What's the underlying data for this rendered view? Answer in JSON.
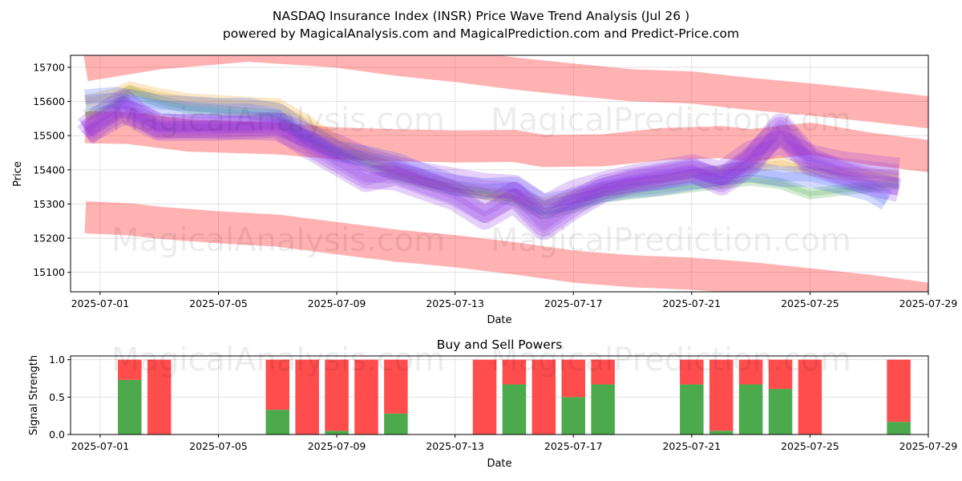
{
  "chart_data": [
    {
      "type": "area",
      "title": "NASDAQ Insurance Index (INSR) Price Wave Trend Analysis (Jul 26 )",
      "subtitle": "powered by MagicalAnalysis.com and MagicalPrediction.com and Predict-Price.com",
      "xlabel": "Date",
      "ylabel": "Price",
      "ylim": [
        15043,
        15735
      ],
      "xlim": [
        "2025-06-30",
        "2025-07-29"
      ],
      "x_ticks": [
        "2025-07-01",
        "2025-07-05",
        "2025-07-09",
        "2025-07-13",
        "2025-07-17",
        "2025-07-21",
        "2025-07-25",
        "2025-07-29"
      ],
      "y_ticks": [
        15100,
        15200,
        15300,
        15400,
        15500,
        15600,
        15700
      ],
      "grid": true,
      "watermarks": [
        "MagicalAnalysis.com",
        "MagicalPrediction.com"
      ],
      "bands": [
        {
          "name": "upper channel",
          "color": "#ff0000",
          "width": 40,
          "points": [
            [
              -0.5,
              15706
            ],
            [
              2,
              15741
            ],
            [
              5,
              15763
            ],
            [
              8,
              15746
            ],
            [
              10,
              15722
            ],
            [
              12,
              15704
            ],
            [
              14,
              15682
            ],
            [
              16,
              15664
            ],
            [
              18,
              15647
            ],
            [
              20,
              15641
            ],
            [
              22,
              15622
            ],
            [
              24,
              15606
            ],
            [
              26,
              15588
            ],
            [
              28.2,
              15566
            ]
          ]
        },
        {
          "name": "middle channel",
          "color": "#ff0000",
          "width": 40,
          "points": [
            [
              -0.5,
              15525
            ],
            [
              1,
              15522
            ],
            [
              3,
              15500
            ],
            [
              6,
              15492
            ],
            [
              8,
              15477
            ],
            [
              10,
              15472
            ],
            [
              12,
              15468
            ],
            [
              14,
              15470
            ],
            [
              15,
              15455
            ],
            [
              17,
              15457
            ],
            [
              19,
              15475
            ],
            [
              21,
              15481
            ],
            [
              22,
              15472
            ],
            [
              24,
              15491
            ],
            [
              26,
              15462
            ],
            [
              28.2,
              15438
            ]
          ]
        },
        {
          "name": "lower channel",
          "color": "#ff0000",
          "width": 40,
          "points": [
            [
              -0.5,
              15261
            ],
            [
              1,
              15255
            ],
            [
              2,
              15245
            ],
            [
              4,
              15232
            ],
            [
              6,
              15222
            ],
            [
              8,
              15200
            ],
            [
              10,
              15178
            ],
            [
              12,
              15162
            ],
            [
              14,
              15141
            ],
            [
              16,
              15117
            ],
            [
              18,
              15103
            ],
            [
              20,
              15096
            ],
            [
              22,
              15083
            ],
            [
              24,
              15065
            ],
            [
              26,
              15046
            ],
            [
              28.2,
              15020
            ]
          ]
        },
        {
          "name": "green wave",
          "color": "#2e9e2e",
          "width": 14,
          "points": [
            [
              -0.5,
              15560
            ],
            [
              0.5,
              15590
            ],
            [
              1,
              15630
            ],
            [
              2,
              15600
            ],
            [
              3,
              15580
            ],
            [
              6,
              15560
            ],
            [
              7,
              15490
            ],
            [
              8,
              15450
            ],
            [
              9,
              15420
            ],
            [
              10,
              15380
            ],
            [
              11,
              15360
            ],
            [
              12,
              15340
            ],
            [
              13,
              15330
            ],
            [
              14,
              15310
            ],
            [
              15,
              15270
            ],
            [
              16,
              15290
            ],
            [
              17,
              15320
            ],
            [
              18,
              15330
            ],
            [
              19,
              15340
            ],
            [
              20,
              15350
            ],
            [
              21,
              15360
            ],
            [
              22,
              15370
            ],
            [
              23,
              15360
            ],
            [
              24,
              15330
            ],
            [
              25,
              15340
            ],
            [
              26,
              15350
            ],
            [
              27,
              15360
            ]
          ]
        },
        {
          "name": "orange wave",
          "color": "#e69500",
          "width": 16,
          "points": [
            [
              -0.5,
              15600
            ],
            [
              0.5,
              15620
            ],
            [
              1,
              15640
            ],
            [
              2,
              15620
            ],
            [
              3,
              15605
            ],
            [
              6,
              15590
            ],
            [
              7,
              15540
            ],
            [
              8,
              15480
            ],
            [
              9,
              15440
            ],
            [
              10,
              15400
            ],
            [
              11,
              15370
            ],
            [
              12,
              15350
            ],
            [
              13,
              15330
            ],
            [
              14,
              15325
            ],
            [
              15,
              15300
            ],
            [
              16,
              15320
            ],
            [
              17,
              15340
            ],
            [
              18,
              15355
            ],
            [
              19,
              15370
            ],
            [
              20,
              15385
            ],
            [
              21,
              15395
            ],
            [
              22,
              15410
            ],
            [
              23,
              15420
            ],
            [
              24,
              15400
            ],
            [
              25,
              15390
            ],
            [
              26,
              15385
            ],
            [
              27,
              15380
            ]
          ]
        },
        {
          "name": "blue wave",
          "color": "#3355ff",
          "width": 26,
          "points": [
            [
              -0.5,
              15605
            ],
            [
              0.5,
              15612
            ],
            [
              1,
              15606
            ],
            [
              2,
              15590
            ],
            [
              3,
              15585
            ],
            [
              4,
              15580
            ],
            [
              5,
              15580
            ],
            [
              6,
              15565
            ],
            [
              7,
              15505
            ],
            [
              8,
              15455
            ],
            [
              9,
              15440
            ],
            [
              10,
              15420
            ],
            [
              11,
              15385
            ],
            [
              12,
              15355
            ],
            [
              13,
              15345
            ],
            [
              14,
              15350
            ],
            [
              15,
              15298
            ],
            [
              16,
              15315
            ],
            [
              17,
              15335
            ],
            [
              18,
              15348
            ],
            [
              19,
              15355
            ],
            [
              20,
              15370
            ],
            [
              21,
              15385
            ],
            [
              22,
              15395
            ],
            [
              23,
              15380
            ],
            [
              24,
              15380
            ],
            [
              25,
              15360
            ],
            [
              26,
              15340
            ],
            [
              26.6,
              15310
            ]
          ]
        },
        {
          "name": "purple wave 1",
          "color": "#8a2be2",
          "width": 30,
          "points": [
            [
              -0.5,
              15520
            ],
            [
              0,
              15555
            ],
            [
              0.8,
              15600
            ],
            [
              1.3,
              15560
            ],
            [
              2,
              15525
            ],
            [
              4,
              15530
            ],
            [
              6,
              15535
            ],
            [
              7,
              15500
            ],
            [
              8,
              15470
            ],
            [
              9,
              15430
            ],
            [
              10,
              15405
            ],
            [
              11,
              15385
            ],
            [
              12,
              15370
            ],
            [
              13,
              15355
            ],
            [
              14,
              15350
            ],
            [
              15,
              15290
            ],
            [
              16,
              15335
            ],
            [
              17,
              15360
            ],
            [
              18,
              15380
            ],
            [
              19,
              15395
            ],
            [
              20,
              15410
            ],
            [
              21,
              15390
            ],
            [
              22,
              15450
            ],
            [
              23,
              15480
            ],
            [
              24,
              15440
            ],
            [
              25,
              15420
            ],
            [
              26,
              15410
            ],
            [
              27,
              15400
            ]
          ]
        },
        {
          "name": "purple wave 2",
          "color": "#8a2be2",
          "width": 30,
          "points": [
            [
              -0.5,
              15500
            ],
            [
              0,
              15540
            ],
            [
              0.8,
              15580
            ],
            [
              1.5,
              15540
            ],
            [
              2,
              15520
            ],
            [
              4,
              15520
            ],
            [
              6,
              15530
            ],
            [
              7,
              15470
            ],
            [
              8,
              15420
            ],
            [
              9,
              15370
            ],
            [
              10,
              15390
            ],
            [
              11,
              15360
            ],
            [
              12,
              15330
            ],
            [
              13,
              15280
            ],
            [
              14,
              15330
            ],
            [
              15,
              15240
            ],
            [
              16,
              15300
            ],
            [
              17,
              15350
            ],
            [
              18,
              15370
            ],
            [
              19,
              15385
            ],
            [
              20,
              15400
            ],
            [
              21,
              15360
            ],
            [
              22,
              15420
            ],
            [
              23,
              15530
            ],
            [
              24,
              15430
            ],
            [
              25,
              15395
            ],
            [
              26,
              15370
            ],
            [
              27,
              15360
            ]
          ]
        },
        {
          "name": "purple wave 3",
          "color": "#8a2be2",
          "width": 30,
          "points": [
            [
              -0.5,
              15510
            ],
            [
              0,
              15530
            ],
            [
              0.8,
              15570
            ],
            [
              1.5,
              15550
            ],
            [
              2,
              15530
            ],
            [
              4,
              15525
            ],
            [
              6,
              15520
            ],
            [
              7,
              15480
            ],
            [
              8,
              15430
            ],
            [
              9,
              15380
            ],
            [
              10,
              15375
            ],
            [
              11,
              15345
            ],
            [
              12,
              15315
            ],
            [
              13,
              15260
            ],
            [
              14,
              15310
            ],
            [
              15,
              15230
            ],
            [
              16,
              15290
            ],
            [
              17,
              15340
            ],
            [
              18,
              15365
            ],
            [
              19,
              15380
            ],
            [
              20,
              15395
            ],
            [
              21,
              15370
            ],
            [
              22,
              15430
            ],
            [
              23,
              15520
            ],
            [
              24,
              15420
            ],
            [
              25,
              15390
            ],
            [
              26,
              15360
            ],
            [
              27,
              15340
            ]
          ]
        }
      ]
    },
    {
      "type": "bar",
      "title": "Buy and Sell Powers",
      "xlabel": "Date",
      "ylabel": "Signal Strength",
      "ylim": [
        0,
        1.05
      ],
      "y_ticks": [
        "0.0",
        "0.5",
        "1.0"
      ],
      "x_ticks": [
        "2025-07-01",
        "2025-07-05",
        "2025-07-09",
        "2025-07-13",
        "2025-07-17",
        "2025-07-21",
        "2025-07-25",
        "2025-07-29"
      ],
      "xlim": [
        "2025-06-30",
        "2025-07-29"
      ],
      "grid": true,
      "colors": {
        "buy": "#4caa4c",
        "sell": "#ff4d4d"
      },
      "series": [
        {
          "name": "Buy",
          "values": [
            0.73,
            0.0,
            0.33,
            0.0,
            0.05,
            0.0,
            0.28,
            0.0,
            0.67,
            0.0,
            0.5,
            0.67,
            0.67,
            0.05,
            0.67,
            0.61,
            0.0,
            0.17
          ]
        },
        {
          "name": "Sell",
          "values": [
            0.27,
            1.0,
            0.67,
            1.0,
            0.95,
            1.0,
            0.72,
            1.0,
            0.33,
            1.0,
            0.5,
            0.33,
            0.33,
            0.95,
            0.33,
            0.39,
            1.0,
            0.83
          ]
        }
      ],
      "days": [
        1,
        2,
        6,
        7,
        8,
        9,
        10,
        13,
        14,
        15,
        16,
        17,
        20,
        21,
        22,
        23,
        24,
        27
      ]
    }
  ]
}
